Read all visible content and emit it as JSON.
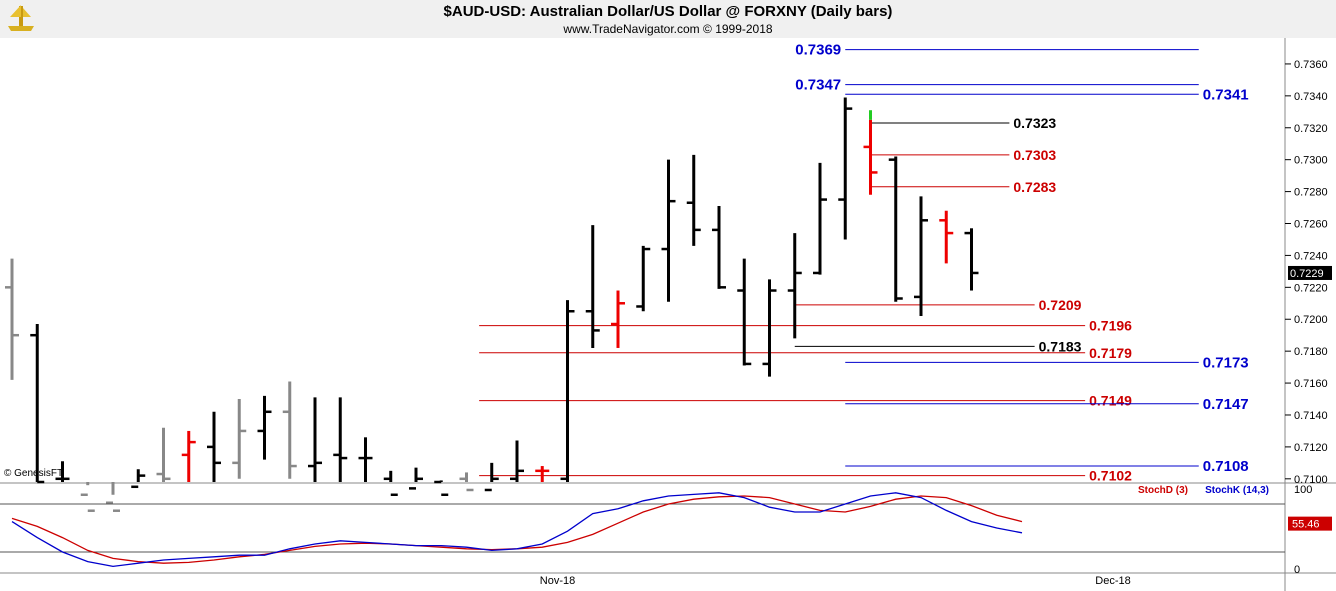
{
  "header": {
    "title": "$AUD-USD:  Australian Dollar/US Dollar @ FORXNY  (Daily bars)",
    "subtitle": "www.TradeNavigator.com © 1999-2018",
    "watermark": "© GenesisFT"
  },
  "chart_data": [
    {
      "type": "ohlc",
      "name": "price",
      "current_price": "0.7229",
      "ylim": [
        0.7098,
        0.7375
      ],
      "y_ticks": [
        "0.7100",
        "0.7120",
        "0.7140",
        "0.7160",
        "0.7180",
        "0.7200",
        "0.7220",
        "0.7240",
        "0.7260",
        "0.7280",
        "0.7300",
        "0.7320",
        "0.7340",
        "0.7360"
      ],
      "x_ticks": [
        {
          "label": "Nov-18",
          "index": 22
        },
        {
          "label": "Dec-18",
          "index": 44
        }
      ],
      "bars": [
        {
          "o": 0.722,
          "h": 0.7238,
          "l": 0.7162,
          "c": 0.719,
          "color": "#888888"
        },
        {
          "o": 0.719,
          "h": 0.7197,
          "l": 0.7085,
          "c": 0.7098,
          "color": "#000000"
        },
        {
          "o": 0.71,
          "h": 0.7111,
          "l": 0.709,
          "c": 0.71,
          "color": "#000000"
        },
        {
          "o": 0.709,
          "h": 0.7096,
          "l": 0.707,
          "c": 0.708,
          "color": "#888888"
        },
        {
          "o": 0.7085,
          "h": 0.709,
          "l": 0.706,
          "c": 0.708,
          "color": "#888888"
        },
        {
          "o": 0.7095,
          "h": 0.7106,
          "l": 0.709,
          "c": 0.7102,
          "color": "#000000"
        },
        {
          "o": 0.7103,
          "h": 0.7132,
          "l": 0.7088,
          "c": 0.71,
          "color": "#888888"
        },
        {
          "o": 0.7115,
          "h": 0.713,
          "l": 0.7095,
          "c": 0.7123,
          "color": "#ee0000"
        },
        {
          "o": 0.712,
          "h": 0.7142,
          "l": 0.7093,
          "c": 0.711,
          "color": "#000000"
        },
        {
          "o": 0.711,
          "h": 0.715,
          "l": 0.71,
          "c": 0.713,
          "color": "#888888"
        },
        {
          "o": 0.713,
          "h": 0.7152,
          "l": 0.7112,
          "c": 0.7142,
          "color": "#000000"
        },
        {
          "o": 0.7142,
          "h": 0.7161,
          "l": 0.71,
          "c": 0.7108,
          "color": "#888888"
        },
        {
          "o": 0.7108,
          "h": 0.7151,
          "l": 0.708,
          "c": 0.711,
          "color": "#000000"
        },
        {
          "o": 0.7115,
          "h": 0.7151,
          "l": 0.708,
          "c": 0.7113,
          "color": "#000000"
        },
        {
          "o": 0.7113,
          "h": 0.7126,
          "l": 0.709,
          "c": 0.7113,
          "color": "#000000"
        },
        {
          "o": 0.71,
          "h": 0.7105,
          "l": 0.708,
          "c": 0.709,
          "color": "#000000"
        },
        {
          "o": 0.7094,
          "h": 0.7107,
          "l": 0.7088,
          "c": 0.71,
          "color": "#000000"
        },
        {
          "o": 0.7098,
          "h": 0.7099,
          "l": 0.708,
          "c": 0.709,
          "color": "#000000"
        },
        {
          "o": 0.71,
          "h": 0.7104,
          "l": 0.708,
          "c": 0.7093,
          "color": "#888888"
        },
        {
          "o": 0.7093,
          "h": 0.711,
          "l": 0.7085,
          "c": 0.71,
          "color": "#000000"
        },
        {
          "o": 0.71,
          "h": 0.7124,
          "l": 0.709,
          "c": 0.7105,
          "color": "#000000"
        },
        {
          "o": 0.7105,
          "h": 0.7108,
          "l": 0.709,
          "c": 0.7105,
          "color": "#ee0000"
        },
        {
          "o": 0.71,
          "h": 0.7212,
          "l": 0.7098,
          "c": 0.7205,
          "color": "#000000"
        },
        {
          "o": 0.7205,
          "h": 0.7259,
          "l": 0.7182,
          "c": 0.7193,
          "color": "#000000"
        },
        {
          "o": 0.7197,
          "h": 0.7218,
          "l": 0.7182,
          "c": 0.721,
          "color": "#ee0000"
        },
        {
          "o": 0.7208,
          "h": 0.7246,
          "l": 0.7205,
          "c": 0.7244,
          "color": "#000000"
        },
        {
          "o": 0.7244,
          "h": 0.73,
          "l": 0.7211,
          "c": 0.7274,
          "color": "#000000"
        },
        {
          "o": 0.7273,
          "h": 0.7303,
          "l": 0.7246,
          "c": 0.7256,
          "color": "#000000"
        },
        {
          "o": 0.7256,
          "h": 0.7271,
          "l": 0.7219,
          "c": 0.722,
          "color": "#000000"
        },
        {
          "o": 0.7218,
          "h": 0.7238,
          "l": 0.7171,
          "c": 0.7172,
          "color": "#000000"
        },
        {
          "o": 0.7172,
          "h": 0.7225,
          "l": 0.7164,
          "c": 0.7218,
          "color": "#000000"
        },
        {
          "o": 0.7218,
          "h": 0.7254,
          "l": 0.7188,
          "c": 0.7229,
          "color": "#000000"
        },
        {
          "o": 0.7229,
          "h": 0.7298,
          "l": 0.7228,
          "c": 0.7275,
          "color": "#000000"
        },
        {
          "o": 0.7275,
          "h": 0.7339,
          "l": 0.725,
          "c": 0.7332,
          "color": "#000000"
        },
        {
          "o": 0.7308,
          "h": 0.7325,
          "l": 0.7278,
          "c": 0.7292,
          "color": "#ee0000"
        },
        {
          "o": 0.73,
          "h": 0.7302,
          "l": 0.7211,
          "c": 0.7213,
          "color": "#000000"
        },
        {
          "o": 0.7214,
          "h": 0.7277,
          "l": 0.7202,
          "c": 0.7262,
          "color": "#000000"
        },
        {
          "o": 0.7262,
          "h": 0.7268,
          "l": 0.7235,
          "c": 0.7254,
          "color": "#ee0000"
        },
        {
          "o": 0.7254,
          "h": 0.7257,
          "l": 0.7218,
          "c": 0.7229,
          "color": "#000000"
        }
      ],
      "bar_highlight": {
        "index": 34,
        "h": 0.7331,
        "l": 0.7325,
        "color": "#22cc22"
      },
      "levels": [
        {
          "value": 0.7369,
          "label": "0.7369",
          "color": "#0000cc",
          "from": 33,
          "to": 47,
          "label_pos": "left"
        },
        {
          "value": 0.7347,
          "label": "0.7347",
          "color": "#0000cc",
          "from": 33,
          "to": 47,
          "label_pos": "left"
        },
        {
          "value": 0.7341,
          "label": "0.7341",
          "color": "#0000cc",
          "from": 33,
          "to": 47,
          "label_pos": "right"
        },
        {
          "value": 0.7323,
          "label": "0.7323",
          "color": "#000000",
          "from": 34,
          "to": 39.5,
          "label_pos": "right"
        },
        {
          "value": 0.7303,
          "label": "0.7303",
          "color": "#cc0000",
          "from": 34,
          "to": 39.5,
          "label_pos": "right"
        },
        {
          "value": 0.7283,
          "label": "0.7283",
          "color": "#cc0000",
          "from": 34,
          "to": 39.5,
          "label_pos": "right"
        },
        {
          "value": 0.7209,
          "label": "0.7209",
          "color": "#cc0000",
          "from": 31,
          "to": 40.5,
          "label_pos": "right"
        },
        {
          "value": 0.7196,
          "label": "0.7196",
          "color": "#cc0000",
          "from": 18.5,
          "to": 42.5,
          "label_pos": "right"
        },
        {
          "value": 0.7183,
          "label": "0.7183",
          "color": "#000000",
          "from": 31,
          "to": 40.5,
          "label_pos": "right"
        },
        {
          "value": 0.7179,
          "label": "0.7179",
          "color": "#cc0000",
          "from": 18.5,
          "to": 42.5,
          "label_pos": "right"
        },
        {
          "value": 0.7173,
          "label": "0.7173",
          "color": "#0000cc",
          "from": 33,
          "to": 47,
          "label_pos": "right"
        },
        {
          "value": 0.7149,
          "label": "0.7149",
          "color": "#cc0000",
          "from": 18.5,
          "to": 42.5,
          "label_pos": "right"
        },
        {
          "value": 0.7147,
          "label": "0.7147",
          "color": "#0000cc",
          "from": 33,
          "to": 47,
          "label_pos": "right"
        },
        {
          "value": 0.7108,
          "label": "0.7108",
          "color": "#0000cc",
          "from": 33,
          "to": 47,
          "label_pos": "right"
        },
        {
          "value": 0.7102,
          "label": "0.7102",
          "color": "#cc0000",
          "from": 18.5,
          "to": 42.5,
          "label_pos": "right"
        }
      ]
    },
    {
      "type": "line",
      "name": "stochastic",
      "ylim": [
        0,
        100
      ],
      "y_ticks": [
        "0",
        "100"
      ],
      "reference_lines": [
        20,
        80
      ],
      "current_value": "55.46",
      "series": [
        {
          "name": "StochD (3)",
          "color": "#cc0000",
          "values": [
            62,
            52,
            38,
            22,
            12,
            8,
            6,
            7,
            10,
            14,
            17,
            22,
            27,
            30,
            31,
            30,
            28,
            26,
            24,
            23,
            24,
            26,
            32,
            42,
            56,
            70,
            80,
            86,
            89,
            90,
            88,
            80,
            72,
            70,
            77,
            86,
            90,
            88,
            78,
            66,
            58
          ]
        },
        {
          "name": "StochK (14,3)",
          "color": "#0000cc",
          "values": [
            58,
            38,
            20,
            8,
            2,
            6,
            10,
            12,
            14,
            16,
            16,
            24,
            30,
            34,
            32,
            30,
            28,
            28,
            26,
            22,
            24,
            30,
            46,
            68,
            74,
            84,
            90,
            92,
            94,
            88,
            76,
            70,
            70,
            80,
            90,
            94,
            88,
            72,
            58,
            50,
            44
          ]
        }
      ]
    }
  ]
}
